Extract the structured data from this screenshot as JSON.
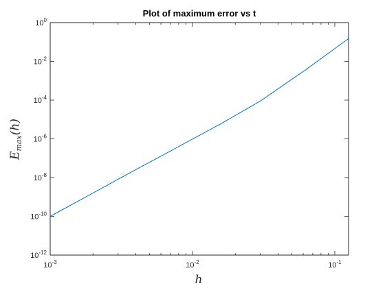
{
  "chart_data": {
    "type": "line",
    "title": "Plot of maximum error vs t",
    "xlabel": "h",
    "ylabel": {
      "base": "E",
      "subscript": "max",
      "suffix": "(h)"
    },
    "xscale": "log",
    "yscale": "log",
    "xlim": [
      0.001,
      0.125
    ],
    "ylim": [
      1e-12,
      1
    ],
    "x_ticks": [
      {
        "value": 0.001,
        "base": "10",
        "exp": "-3"
      },
      {
        "value": 0.01,
        "base": "10",
        "exp": "-2"
      },
      {
        "value": 0.1,
        "base": "10",
        "exp": "-1"
      }
    ],
    "y_ticks": [
      {
        "value": 1e-12,
        "base": "10",
        "exp": "-12"
      },
      {
        "value": 1e-10,
        "base": "10",
        "exp": "-10"
      },
      {
        "value": 1e-08,
        "base": "10",
        "exp": "-8"
      },
      {
        "value": 1e-06,
        "base": "10",
        "exp": "-6"
      },
      {
        "value": 0.0001,
        "base": "10",
        "exp": "-4"
      },
      {
        "value": 0.01,
        "base": "10",
        "exp": "-2"
      },
      {
        "value": 1,
        "base": "10",
        "exp": "0"
      }
    ],
    "grid": false,
    "legend": "none",
    "series": [
      {
        "color": "#0072BD",
        "x": [
          0.001,
          0.002,
          0.004,
          0.008,
          0.016,
          0.03,
          0.0625,
          0.125
        ],
        "y": [
          1e-10,
          1.6e-09,
          2.6e-08,
          4e-07,
          6.3e-06,
          9e-05,
          0.0037,
          0.15
        ]
      }
    ]
  }
}
